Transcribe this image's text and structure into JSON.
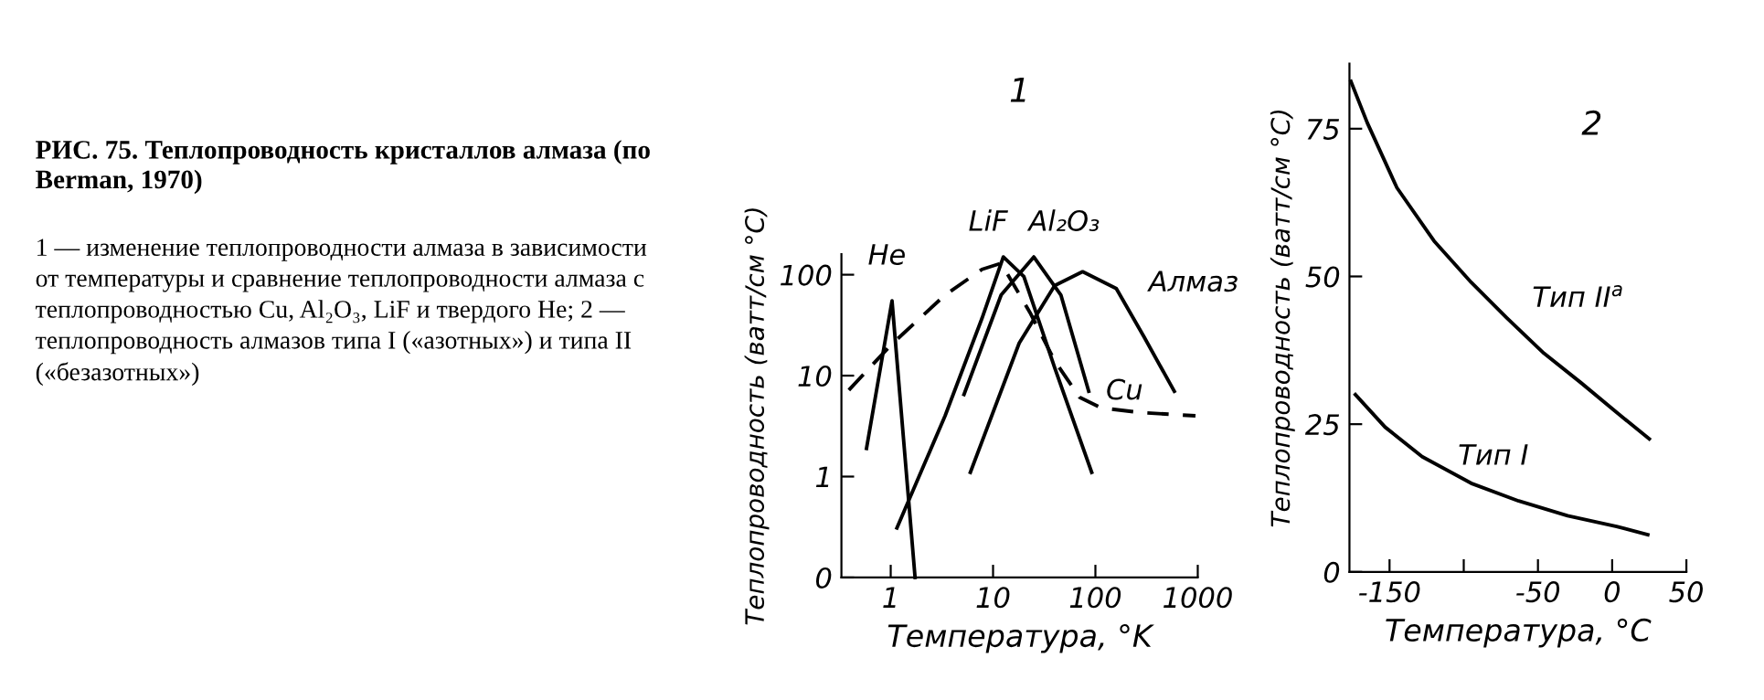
{
  "chart_data": [
    {
      "type": "other",
      "title": "РИС. 75. Теплопроводность кристаллов алмаза (по Berman, 1970)",
      "annotations": [
        "1 — изменение теплопроводности алмаза в зависимости от температуры и сравнение теплопроводности алмаза с теплопроводностью Cu, Al₂O₃, LiF и твердого He; 2 — теплопроводность алмазов типа I («азотных») и типа II («безазотных»)"
      ]
    },
    {
      "type": "line",
      "title": "1",
      "xlabel": "Температура, °K",
      "ylabel": "Теплопроводность (ватт/см °С)",
      "log": "xy",
      "xlim": [
        0.33,
        1000
      ],
      "ylim": [
        0.1,
        160
      ],
      "xticks": [
        1,
        10,
        100,
        1000
      ],
      "yticks": [
        {
          "value": 0.1,
          "label": "0"
        },
        1,
        10,
        100
      ],
      "line_style": "solid",
      "series": [
        {
          "name": "He",
          "color": "#000000",
          "x": [
            0.58,
            1.03,
            1.73
          ],
          "values": [
            1.9,
            55,
            0.1
          ]
        },
        {
          "name": "LiF",
          "color": "#000000",
          "x": [
            1.15,
            3.4,
            7.8,
            12.6,
            20,
            40,
            92
          ],
          "values": [
            0.31,
            4,
            37,
            150,
            96,
            12,
            1.1
          ]
        },
        {
          "name": "Al₂O₃",
          "color": "#000000",
          "x": [
            5.2,
            12,
            25,
            46,
            86
          ],
          "values": [
            6.5,
            63,
            150,
            63,
            7
          ]
        },
        {
          "name": "Алмаз",
          "color": "#000000",
          "x": [
            6,
            18,
            40,
            75,
            160,
            300,
            590
          ],
          "values": [
            1.1,
            21,
            78,
            107,
            73,
            24,
            7
          ]
        },
        {
          "name": "Cu",
          "color": "#000000",
          "line_style": "dashed",
          "x": [
            0.39,
            1,
            3.4,
            7.8,
            12,
            23,
            40,
            70,
            113,
            280,
            950
          ],
          "values": [
            7.2,
            20,
            63,
            113,
            130,
            42,
            14,
            6.1,
            4.8,
            4.3,
            4
          ]
        }
      ]
    },
    {
      "type": "line",
      "title": "2",
      "xlabel": "Температура, °C",
      "ylabel": "Теплопроводность (ватт/см °С)",
      "xlim": [
        -177,
        50
      ],
      "ylim": [
        0,
        86
      ],
      "xticks": [
        -150,
        {
          "value": -100,
          "label": null
        },
        -50,
        0,
        50
      ],
      "yticks": [
        0,
        25,
        50,
        75
      ],
      "line_style": "solid",
      "series": [
        {
          "name": "Тип II$^{a}$",
          "color": "#000000",
          "x": [
            -176,
            -165,
            -145,
            -120,
            -95,
            -71,
            -46,
            -21,
            3,
            25
          ],
          "values": [
            83,
            76,
            65,
            56,
            49,
            43,
            37,
            32,
            27,
            22.5
          ]
        },
        {
          "name": "Тип I",
          "color": "#000000",
          "x": [
            -173,
            -153,
            -128,
            -95,
            -63,
            -30,
            3,
            24
          ],
          "values": [
            30,
            24.5,
            19.5,
            15,
            12,
            9.5,
            7.7,
            6.3
          ]
        }
      ]
    }
  ]
}
